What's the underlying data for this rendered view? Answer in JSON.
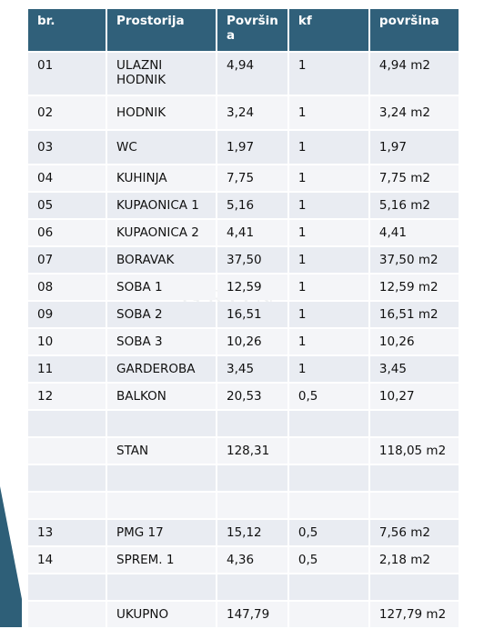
{
  "headers": [
    "br.",
    "Prostorija",
    "Površin a",
    "kf",
    "površina"
  ],
  "rows": [
    [
      "01",
      "ULAZNI HODNIK",
      "4,94",
      "1",
      "4,94 m2"
    ],
    [
      "02",
      "HODNIK",
      "3,24",
      "1",
      "3,24 m2"
    ],
    [
      "03",
      "WC",
      "1,97",
      "1",
      "1,97"
    ],
    [
      "04",
      "KUHINJA",
      "7,75",
      "1",
      "7,75 m2"
    ],
    [
      "05",
      "KUPAONICA 1",
      "5,16",
      "1",
      "5,16 m2"
    ],
    [
      "06",
      "KUPAONICA 2",
      "4,41",
      "1",
      "4,41"
    ],
    [
      "07",
      "BORAVAK",
      "37,50",
      "1",
      "37,50 m2"
    ],
    [
      "08",
      "SOBA 1",
      "12,59",
      "1",
      "12,59 m2"
    ],
    [
      "09",
      "SOBA 2",
      "16,51",
      "1",
      "16,51 m2"
    ],
    [
      "10",
      "SOBA 3",
      "10,26",
      "1",
      "10,26"
    ],
    [
      "11",
      "GARDEROBA",
      "3,45",
      "1",
      "3,45"
    ],
    [
      "12",
      "BALKON",
      "20,53",
      "0,5",
      "10,27"
    ],
    [
      "",
      "",
      "",
      "",
      ""
    ],
    [
      "",
      "STAN",
      "128,31",
      "",
      "118,05 m2"
    ],
    [
      "",
      "",
      "",
      "",
      ""
    ],
    [
      "",
      "",
      "",
      "",
      ""
    ],
    [
      "13",
      "PMG 17",
      "15,12",
      "0,5",
      "7,56 m2"
    ],
    [
      "14",
      "SPREM. 1",
      "4,36",
      "0,5",
      "2,18 m2"
    ],
    [
      "",
      "",
      "",
      "",
      ""
    ],
    [
      "",
      "UKUPNO",
      "147,79",
      "",
      "127,79 m2"
    ]
  ],
  "watermark": "GRON",
  "colors": {
    "header_bg": "#30607a",
    "cell_bg": "#e9ecf2",
    "cell_bg_alt": "#f4f5f8",
    "accent": "#2e5f78"
  }
}
